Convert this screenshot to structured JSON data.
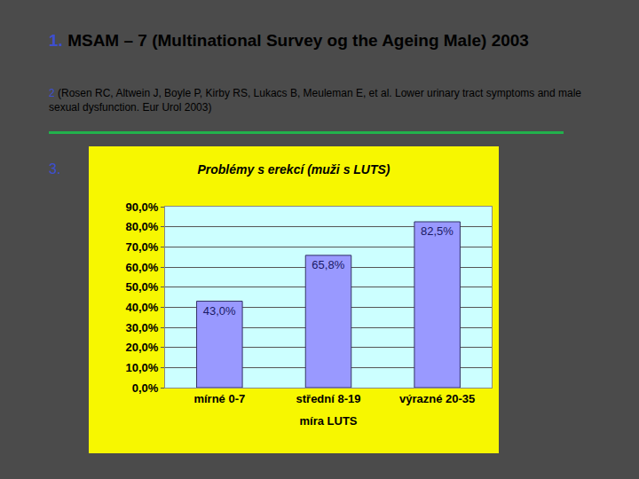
{
  "slide": {
    "heading_number": "1.",
    "heading": "MSAM – 7 (Multinational Survey og the Ageing Male) 2003",
    "reference_number": "2",
    "reference": "(Rosen RC, Altwein J, Boyle P, Kirby RS, Lukacs B, Meuleman E, et al. Lower urinary tract symptoms and male sexual dysfunction. Eur Urol 2003)",
    "chart_number": "3."
  },
  "chart_data": {
    "type": "bar",
    "title": "Problémy s erekcí (muži s LUTS)",
    "x_label": "míra LUTS",
    "categories": [
      "mírné 0-7",
      "střední 8-19",
      "výrazné 20-35"
    ],
    "values": [
      43.0,
      65.8,
      82.5
    ],
    "value_labels": [
      "43,0%",
      "65,8%",
      "82,5%"
    ],
    "color": "#9999ff",
    "ylim": [
      0,
      90
    ],
    "yticks": [
      {
        "value": 0,
        "label": "0,0%"
      },
      {
        "value": 10,
        "label": "10,0%"
      },
      {
        "value": 20,
        "label": "20,0%"
      },
      {
        "value": 30,
        "label": "30,0%"
      },
      {
        "value": 40,
        "label": "40,0%"
      },
      {
        "value": 50,
        "label": "50,0%"
      },
      {
        "value": 60,
        "label": "60,0%"
      },
      {
        "value": 70,
        "label": "70,0%"
      },
      {
        "value": 80,
        "label": "80,0%"
      },
      {
        "value": 90,
        "label": "90,0%"
      }
    ],
    "grid": true,
    "data_labels": true
  }
}
